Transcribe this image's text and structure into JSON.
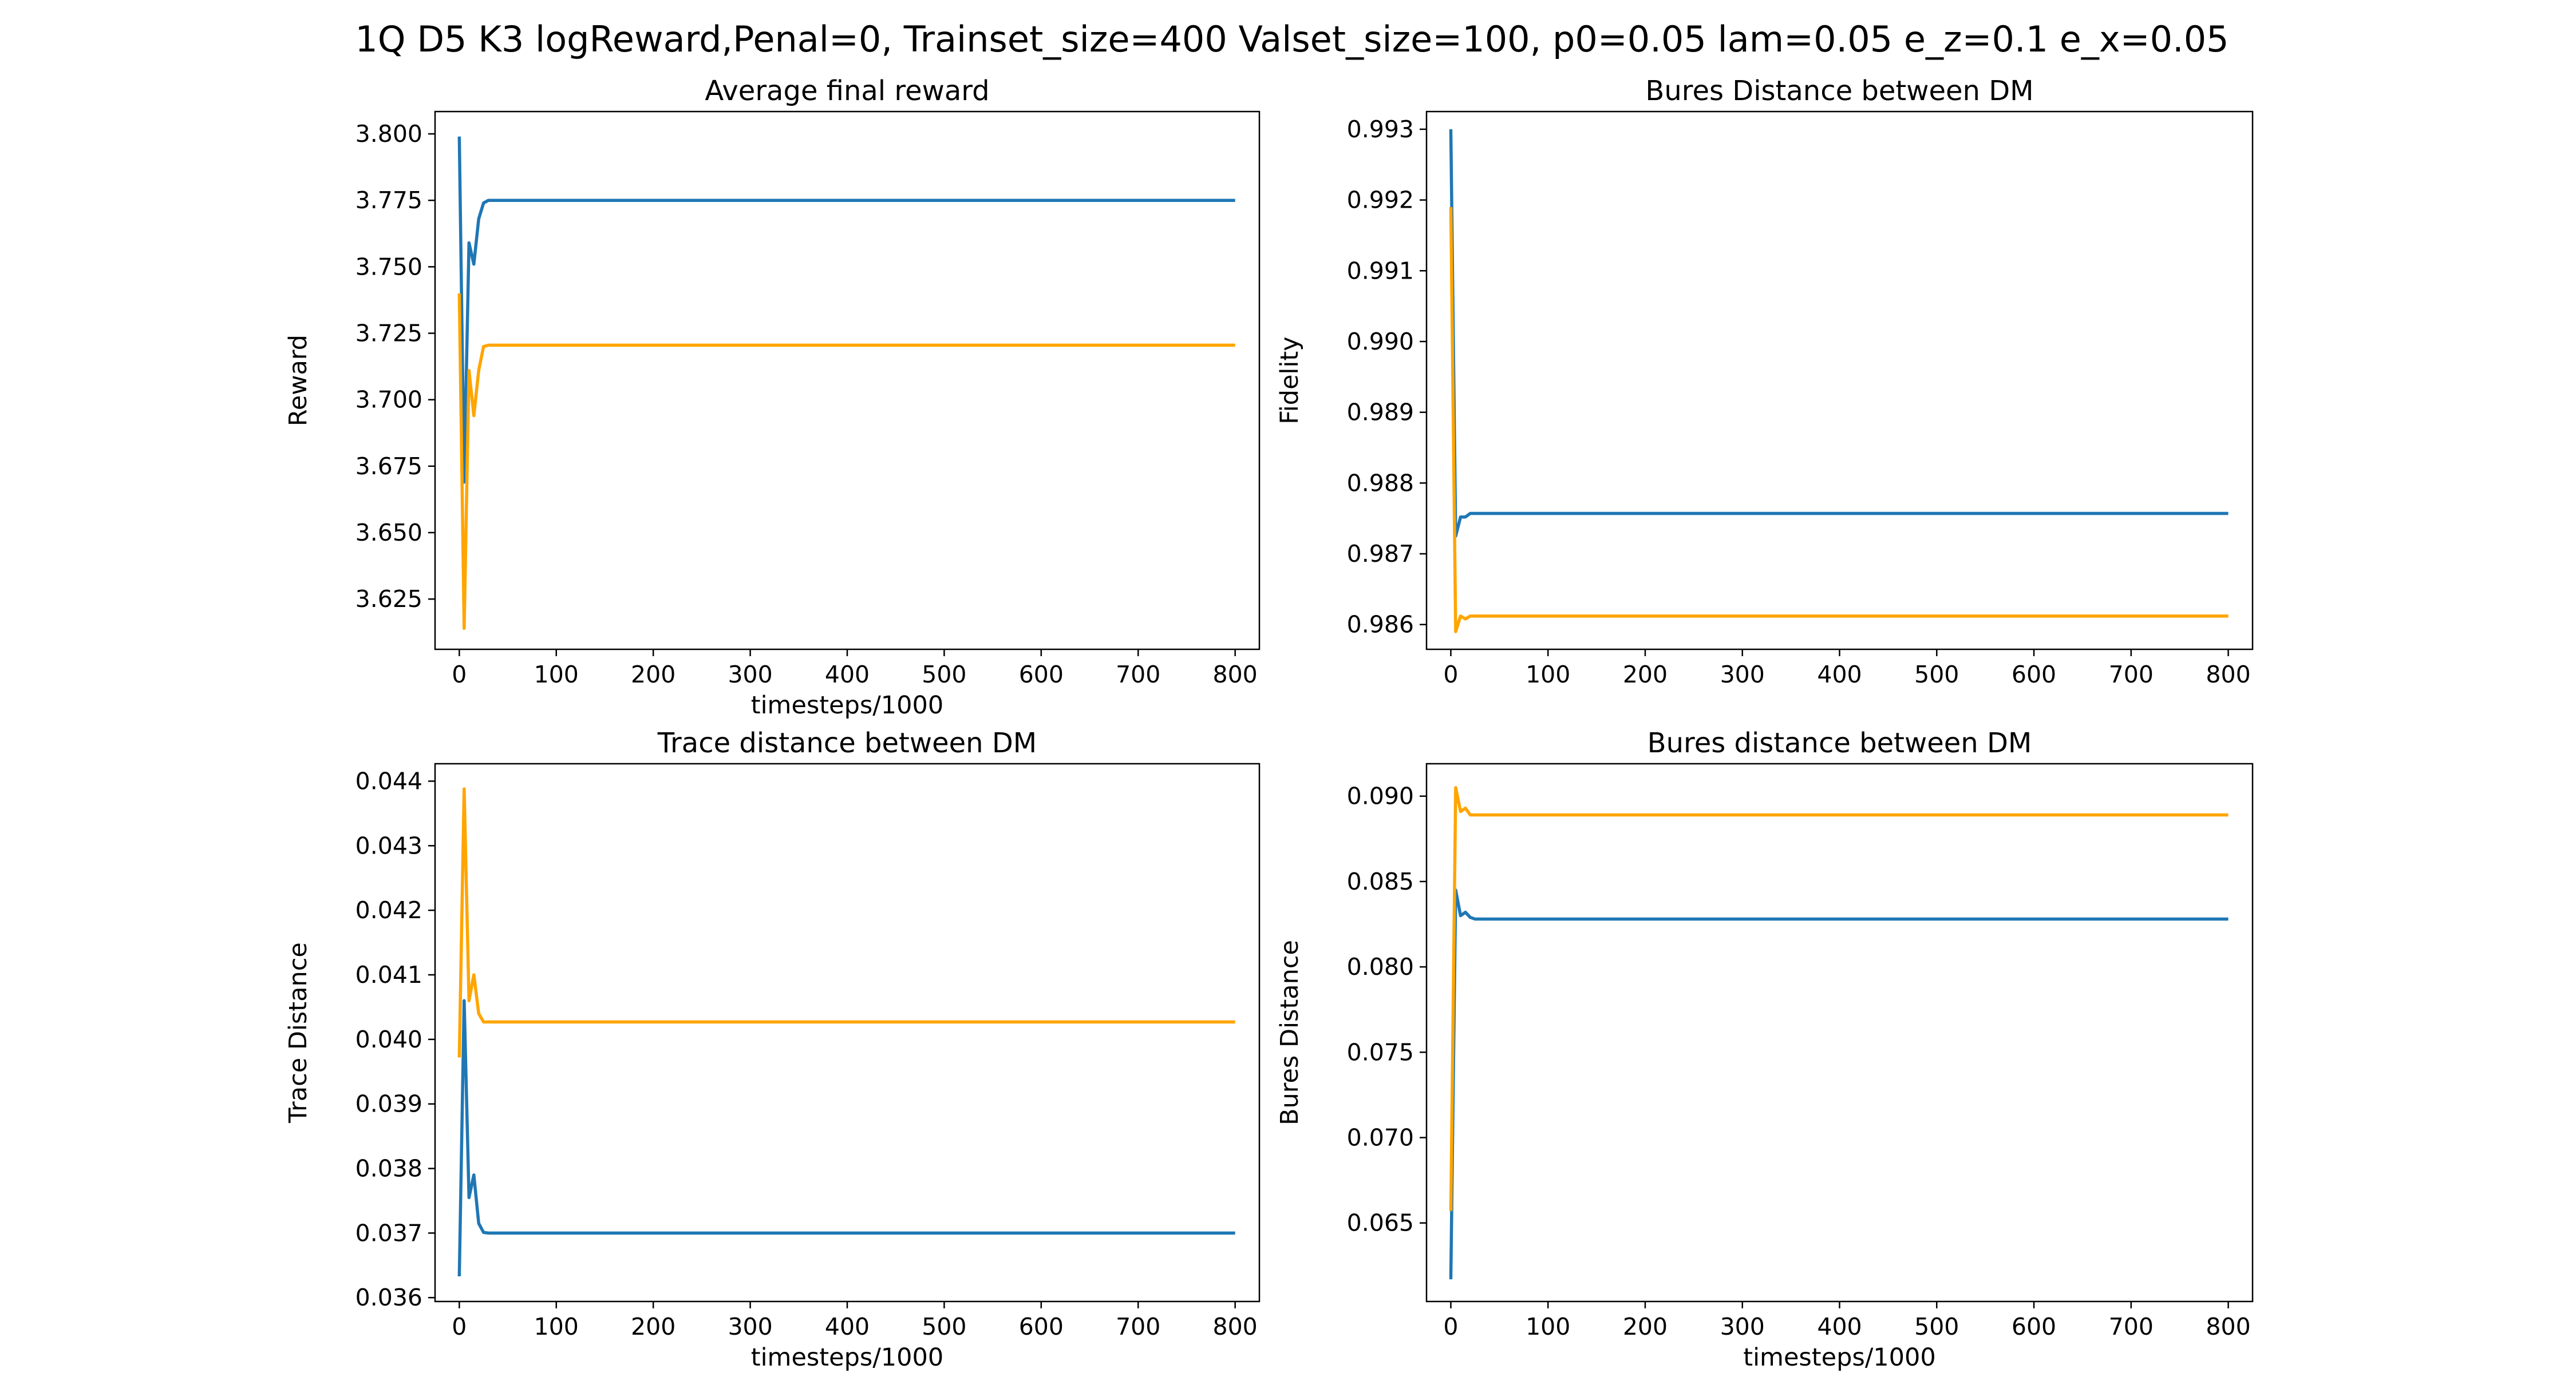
{
  "figure": {
    "suptitle": "1Q D5 K3 logReward,Penal=0, Trainset_size=400 Valset_size=100, p0=0.05 lam=0.05 e_z=0.1 e_x=0.05"
  },
  "chart_data": [
    {
      "type": "line",
      "title": "Average final reward",
      "xlabel": "timesteps/1000",
      "ylabel": "Reward",
      "xlim": [
        -25,
        825
      ],
      "ylim": [
        3.6061,
        3.8084
      ],
      "grid": false,
      "xticks": [
        0,
        100,
        200,
        300,
        400,
        500,
        600,
        700,
        800
      ],
      "xtick_labels": [
        "0",
        "100",
        "200",
        "300",
        "400",
        "500",
        "600",
        "700",
        "800"
      ],
      "yticks": [
        3.625,
        3.65,
        3.675,
        3.7,
        3.725,
        3.75,
        3.775,
        3.8
      ],
      "ytick_labels": [
        "3.625",
        "3.650",
        "3.675",
        "3.700",
        "3.725",
        "3.750",
        "3.775",
        "3.800"
      ],
      "series": [
        {
          "color": "#1f77b4",
          "x": [
            0,
            5,
            10,
            15,
            20,
            25,
            30,
            800
          ],
          "y": [
            3.799,
            3.669,
            3.759,
            3.751,
            3.768,
            3.774,
            3.775,
            3.775
          ]
        },
        {
          "color": "#ffa500",
          "x": [
            0,
            5,
            10,
            15,
            20,
            25,
            30,
            800
          ],
          "y": [
            3.74,
            3.614,
            3.711,
            3.694,
            3.711,
            3.72,
            3.7205,
            3.7205
          ]
        }
      ]
    },
    {
      "type": "line",
      "title": "Bures Distance between DM",
      "xlabel": "",
      "ylabel": "Fidelity",
      "xlim": [
        -25,
        825
      ],
      "ylim": [
        0.98565,
        0.99325
      ],
      "grid": false,
      "xticks": [
        0,
        100,
        200,
        300,
        400,
        500,
        600,
        700,
        800
      ],
      "xtick_labels": [
        "0",
        "100",
        "200",
        "300",
        "400",
        "500",
        "600",
        "700",
        "800"
      ],
      "yticks": [
        0.986,
        0.987,
        0.988,
        0.989,
        0.99,
        0.991,
        0.992,
        0.993
      ],
      "ytick_labels": [
        "0.986",
        "0.987",
        "0.988",
        "0.989",
        "0.990",
        "0.991",
        "0.992",
        "0.993"
      ],
      "series": [
        {
          "color": "#1f77b4",
          "x": [
            0,
            5,
            10,
            15,
            20,
            25,
            30,
            800
          ],
          "y": [
            0.993,
            0.98725,
            0.98752,
            0.98752,
            0.98757,
            0.98757,
            0.98757,
            0.98757
          ]
        },
        {
          "color": "#ffa500",
          "x": [
            0,
            5,
            10,
            15,
            20,
            25,
            30,
            800
          ],
          "y": [
            0.9919,
            0.9859,
            0.98612,
            0.98608,
            0.98612,
            0.98612,
            0.98612,
            0.98612
          ]
        }
      ]
    },
    {
      "type": "line",
      "title": "Trace distance between DM",
      "xlabel": "timesteps/1000",
      "ylabel": "Trace Distance",
      "xlim": [
        -25,
        825
      ],
      "ylim": [
        0.03594,
        0.04427
      ],
      "grid": false,
      "xticks": [
        0,
        100,
        200,
        300,
        400,
        500,
        600,
        700,
        800
      ],
      "xtick_labels": [
        "0",
        "100",
        "200",
        "300",
        "400",
        "500",
        "600",
        "700",
        "800"
      ],
      "yticks": [
        0.036,
        0.037,
        0.038,
        0.039,
        0.04,
        0.041,
        0.042,
        0.043,
        0.044
      ],
      "ytick_labels": [
        "0.036",
        "0.037",
        "0.038",
        "0.039",
        "0.040",
        "0.041",
        "0.042",
        "0.043",
        "0.044"
      ],
      "series": [
        {
          "color": "#1f77b4",
          "x": [
            0,
            5,
            10,
            15,
            20,
            25,
            30,
            800
          ],
          "y": [
            0.03633,
            0.0406,
            0.03755,
            0.0379,
            0.03715,
            0.03701,
            0.037,
            0.037
          ]
        },
        {
          "color": "#ffa500",
          "x": [
            0,
            5,
            10,
            15,
            20,
            25,
            30,
            800
          ],
          "y": [
            0.03972,
            0.04388,
            0.0406,
            0.041,
            0.0404,
            0.04027,
            0.04027,
            0.04027
          ]
        }
      ]
    },
    {
      "type": "line",
      "title": "Bures distance between DM",
      "xlabel": "timesteps/1000",
      "ylabel": "Bures Distance",
      "xlim": [
        -25,
        825
      ],
      "ylim": [
        0.0604,
        0.0919
      ],
      "grid": false,
      "xticks": [
        0,
        100,
        200,
        300,
        400,
        500,
        600,
        700,
        800
      ],
      "xtick_labels": [
        "0",
        "100",
        "200",
        "300",
        "400",
        "500",
        "600",
        "700",
        "800"
      ],
      "yticks": [
        0.065,
        0.07,
        0.075,
        0.08,
        0.085,
        0.09
      ],
      "ytick_labels": [
        "0.065",
        "0.070",
        "0.075",
        "0.080",
        "0.085",
        "0.090"
      ],
      "series": [
        {
          "color": "#1f77b4",
          "x": [
            0,
            5,
            10,
            15,
            20,
            25,
            30,
            800
          ],
          "y": [
            0.0617,
            0.0845,
            0.083,
            0.0832,
            0.0829,
            0.0828,
            0.0828,
            0.0828
          ]
        },
        {
          "color": "#ffa500",
          "x": [
            0,
            5,
            10,
            15,
            20,
            25,
            30,
            800
          ],
          "y": [
            0.0657,
            0.0905,
            0.0891,
            0.0893,
            0.0889,
            0.0889,
            0.0889,
            0.0889
          ]
        }
      ]
    }
  ]
}
